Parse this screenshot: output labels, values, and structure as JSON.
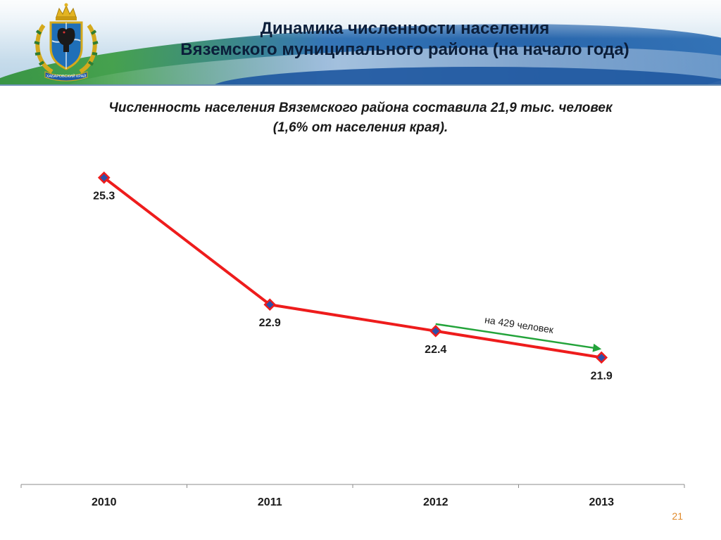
{
  "header": {
    "title_line1": "Динамика численности населения",
    "title_line2": "Вяземского муниципального района (на начало года)",
    "emblem_text": "ХАБАРОВСКИЙ КРАЙ"
  },
  "subtitle": {
    "line1": "Численность населения Вяземского района составила 21,9 тыс. человек",
    "line2": "(1,6% от населения края)."
  },
  "chart_data": {
    "type": "line",
    "categories": [
      "2010",
      "2011",
      "2012",
      "2013"
    ],
    "series": [
      {
        "values": [
          25.3,
          22.9,
          22.4,
          21.9
        ],
        "color": "#ee1c1c",
        "marker_fill": "#2e4fa8"
      }
    ],
    "ylim": [
      19.5,
      26
    ],
    "grid": false,
    "annotation": {
      "text": "на 429 человек",
      "from": "2012",
      "to": "2013",
      "color": "#23a33a"
    }
  },
  "footer": {
    "page_number": "21"
  }
}
